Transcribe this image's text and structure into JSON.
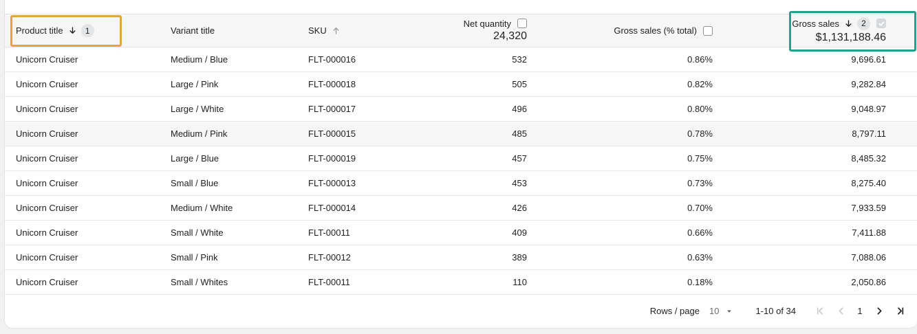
{
  "header": {
    "columns": [
      {
        "id": "product_title",
        "label": "Product title",
        "sort_direction": "desc",
        "sort_priority": "1"
      },
      {
        "id": "variant_title",
        "label": "Variant title"
      },
      {
        "id": "sku",
        "label": "SKU",
        "sort_direction": "asc"
      },
      {
        "id": "net_quantity",
        "label": "Net quantity",
        "checkbox": "unchecked",
        "total": "24,320"
      },
      {
        "id": "gross_sales_pct",
        "label": "Gross sales (% total)",
        "checkbox": "unchecked"
      },
      {
        "id": "gross_sales",
        "label": "Gross sales",
        "sort_direction": "desc",
        "sort_priority": "2",
        "checkbox": "checked-disabled",
        "total": "$1,131,188.46"
      }
    ]
  },
  "rows": [
    {
      "product_title": "Unicorn Cruiser",
      "variant_title": "Medium / Blue",
      "sku": "FLT-000016",
      "net_quantity": "532",
      "gross_sales_pct": "0.86%",
      "gross_sales": "9,696.61"
    },
    {
      "product_title": "Unicorn Cruiser",
      "variant_title": "Large / Pink",
      "sku": "FLT-000018",
      "net_quantity": "505",
      "gross_sales_pct": "0.82%",
      "gross_sales": "9,282.84"
    },
    {
      "product_title": "Unicorn Cruiser",
      "variant_title": "Large / White",
      "sku": "FLT-000017",
      "net_quantity": "496",
      "gross_sales_pct": "0.80%",
      "gross_sales": "9,048.97"
    },
    {
      "product_title": "Unicorn Cruiser",
      "variant_title": "Medium / Pink",
      "sku": "FLT-000015",
      "net_quantity": "485",
      "gross_sales_pct": "0.78%",
      "gross_sales": "8,797.11"
    },
    {
      "product_title": "Unicorn Cruiser",
      "variant_title": "Large / Blue",
      "sku": "FLT-000019",
      "net_quantity": "457",
      "gross_sales_pct": "0.75%",
      "gross_sales": "8,485.32"
    },
    {
      "product_title": "Unicorn Cruiser",
      "variant_title": "Small / Blue",
      "sku": "FLT-000013",
      "net_quantity": "453",
      "gross_sales_pct": "0.73%",
      "gross_sales": "8,275.40"
    },
    {
      "product_title": "Unicorn Cruiser",
      "variant_title": "Medium / White",
      "sku": "FLT-000014",
      "net_quantity": "426",
      "gross_sales_pct": "0.70%",
      "gross_sales": "7,933.59"
    },
    {
      "product_title": "Unicorn Cruiser",
      "variant_title": "Small / White",
      "sku": "FLT-00011",
      "net_quantity": "409",
      "gross_sales_pct": "0.66%",
      "gross_sales": "7,411.88"
    },
    {
      "product_title": "Unicorn Cruiser",
      "variant_title": "Small / Pink",
      "sku": "FLT-00012",
      "net_quantity": "389",
      "gross_sales_pct": "0.63%",
      "gross_sales": "7,088.06"
    },
    {
      "product_title": "Unicorn Cruiser",
      "variant_title": "Small / Whites",
      "sku": "FLT-00011",
      "net_quantity": "110",
      "gross_sales_pct": "0.18%",
      "gross_sales": "2,050.86"
    }
  ],
  "highlighted_row_index": 3,
  "footer": {
    "rows_per_page_label": "Rows / page",
    "rows_per_page_value": "10",
    "range_text": "1-10 of 34",
    "current_page": "1"
  },
  "colors": {
    "sort_primary_outline": "#E8A33D",
    "sort_secondary_outline": "#1FA38A"
  }
}
